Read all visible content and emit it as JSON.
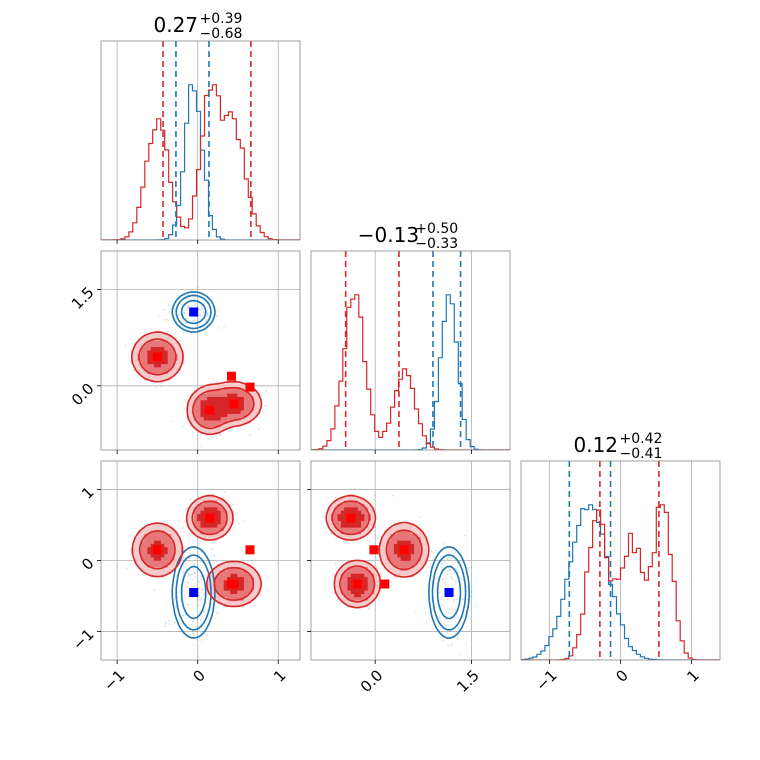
{
  "colors": {
    "blue": "#1f77b4",
    "red": "#d62728",
    "red_mid": "#e8777a",
    "red_light": "#f6c9ca",
    "grid": "#b0b0b0",
    "marker_blue": "#0000ff",
    "marker_red": "#ff0000"
  },
  "chart_data": {
    "type": "corner",
    "grid": true,
    "titles": [
      {
        "main": "0.27",
        "plus": "+0.39",
        "minus": "−0.68"
      },
      {
        "main": "−0.13",
        "plus": "+0.50",
        "minus": "−0.33"
      },
      {
        "main": "0.12",
        "plus": "+0.42",
        "minus": "−0.41"
      }
    ],
    "params": [
      {
        "range": [
          -1.2,
          1.27
        ],
        "ticks": [
          -1,
          0,
          1
        ],
        "tick_labels": [
          "−1",
          "0",
          "1"
        ]
      },
      {
        "range": [
          -1.0,
          2.1
        ],
        "ticks": [
          0.0,
          1.5
        ],
        "tick_labels": [
          "0.0",
          "1.5"
        ]
      },
      {
        "range": [
          -1.4,
          1.4
        ],
        "ticks": [
          -1,
          0,
          1
        ],
        "tick_labels": [
          "−1",
          "0",
          "1"
        ]
      }
    ],
    "series": [
      {
        "color": "#1f77b4",
        "hist_lines": [
          [
            -0.27,
            0.14
          ],
          [
            0.9,
            1.33
          ],
          [
            -0.72,
            -0.14
          ]
        ],
        "modes": [
          {
            "w": 1.0,
            "mu": [
              -0.05,
              1.15,
              -0.45
            ],
            "sd": [
              0.11,
              0.13,
              0.27
            ]
          }
        ]
      },
      {
        "color": "#d62728",
        "hist_lines": [
          [
            -0.43,
            0.66
          ],
          [
            -0.46,
            0.37
          ],
          [
            -0.29,
            0.54
          ]
        ],
        "modes": [
          {
            "w": 0.34,
            "mu": [
              -0.5,
              0.45,
              0.15
            ],
            "sd": [
              0.14,
              0.17,
              0.17
            ]
          },
          {
            "w": 0.33,
            "mu": [
              0.15,
              -0.38,
              0.6
            ],
            "sd": [
              0.12,
              0.16,
              0.13
            ]
          },
          {
            "w": 0.33,
            "mu": [
              0.45,
              -0.28,
              -0.33
            ],
            "sd": [
              0.15,
              0.15,
              0.14
            ]
          }
        ]
      }
    ],
    "markers": [
      {
        "color": "#0000ff",
        "pos": [
          -0.05,
          1.15,
          -0.45
        ]
      },
      {
        "color": "#ff0000",
        "pos": [
          -0.5,
          0.45,
          0.15
        ]
      },
      {
        "color": "#ff0000",
        "pos": [
          0.15,
          -0.38,
          0.6
        ]
      },
      {
        "color": "#ff0000",
        "pos": [
          0.45,
          -0.28,
          -0.33
        ]
      },
      {
        "color": "#ff0000",
        "pos": [
          0.65,
          -0.02,
          0.15
        ]
      },
      {
        "color": "#ff0000",
        "pos": [
          0.42,
          0.15,
          -0.33
        ]
      }
    ]
  }
}
